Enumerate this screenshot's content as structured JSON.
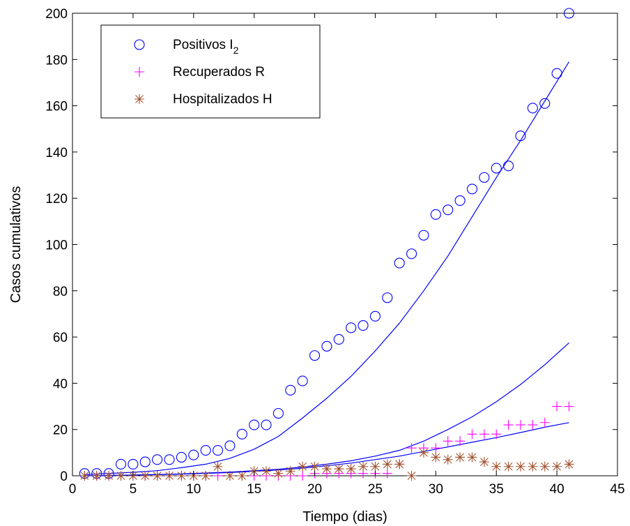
{
  "chart_data": {
    "type": "scatter",
    "title": "",
    "xlabel": "Tiempo (dias)",
    "ylabel": "Casos cumulativos",
    "xlim": [
      0,
      45
    ],
    "ylim": [
      0,
      200
    ],
    "xticks": [
      0,
      5,
      10,
      15,
      20,
      25,
      30,
      35,
      40,
      45
    ],
    "yticks": [
      0,
      20,
      40,
      60,
      80,
      100,
      120,
      140,
      160,
      180,
      200
    ],
    "grid": false,
    "legend_position": "top-left",
    "series": [
      {
        "name": "Positivos I",
        "name_subscript": "2",
        "marker": "circle",
        "color": "#0000ff",
        "x": [
          1,
          2,
          3,
          4,
          5,
          6,
          7,
          8,
          9,
          10,
          11,
          12,
          13,
          14,
          15,
          16,
          17,
          18,
          19,
          20,
          21,
          22,
          23,
          24,
          25,
          26,
          27,
          28,
          29,
          30,
          31,
          32,
          33,
          34,
          35,
          36,
          37,
          38,
          39,
          40,
          41
        ],
        "y": [
          1,
          1,
          1,
          5,
          5,
          6,
          7,
          7,
          8,
          9,
          11,
          11,
          13,
          18,
          22,
          22,
          27,
          37,
          41,
          52,
          56,
          59,
          64,
          65,
          69,
          77,
          92,
          96,
          104,
          113,
          115,
          119,
          124,
          129,
          133,
          134,
          147,
          159,
          161,
          174,
          200
        ]
      },
      {
        "name": "Recuperados R",
        "marker": "plus",
        "color": "#ff00ff",
        "x": [
          1,
          2,
          3,
          4,
          5,
          6,
          7,
          8,
          9,
          10,
          11,
          12,
          13,
          14,
          15,
          16,
          17,
          18,
          19,
          20,
          21,
          22,
          23,
          24,
          25,
          26,
          27,
          28,
          29,
          30,
          31,
          32,
          33,
          34,
          35,
          36,
          37,
          38,
          39,
          40,
          41
        ],
        "y": [
          0,
          0,
          0,
          0,
          0,
          0,
          0,
          0,
          0,
          0,
          0,
          0,
          0,
          0,
          0,
          0,
          0,
          0,
          0,
          1,
          1,
          1,
          1,
          1,
          1,
          1,
          5,
          12,
          12,
          12,
          15,
          15,
          18,
          18,
          18,
          22,
          22,
          22,
          23,
          30,
          30
        ]
      },
      {
        "name": "Hospitalizados H",
        "marker": "star",
        "color": "#a0522d",
        "x": [
          1,
          2,
          3,
          4,
          5,
          6,
          7,
          8,
          9,
          10,
          11,
          12,
          13,
          14,
          15,
          16,
          17,
          18,
          19,
          20,
          21,
          22,
          23,
          24,
          25,
          26,
          27,
          28,
          29,
          30,
          31,
          32,
          33,
          34,
          35,
          36,
          37,
          38,
          39,
          40,
          41
        ],
        "y": [
          0,
          0,
          0,
          0,
          0,
          0,
          0,
          0,
          0,
          0,
          0,
          4,
          0,
          0,
          2,
          2,
          1,
          2,
          4,
          4,
          3,
          3,
          3,
          4,
          4,
          5,
          5,
          0,
          10,
          8,
          7,
          8,
          8,
          6,
          4,
          4,
          4,
          4,
          4,
          4,
          5
        ]
      }
    ],
    "model_lines": [
      {
        "color": "#0000ff",
        "x": [
          1,
          3,
          5,
          7,
          9,
          11,
          13,
          15,
          17,
          19,
          21,
          23,
          25,
          27,
          29,
          31,
          33,
          35,
          37,
          39,
          41
        ],
        "y": [
          0.5,
          1,
          1.5,
          2.2,
          3.5,
          5,
          7.5,
          11.5,
          17,
          25,
          33.5,
          43,
          54,
          66,
          80,
          95,
          112,
          129,
          145,
          162,
          179
        ]
      },
      {
        "color": "#0000ff",
        "x": [
          1,
          5,
          9,
          13,
          17,
          19,
          21,
          23,
          25,
          27,
          29,
          31,
          33,
          35,
          37,
          39,
          41
        ],
        "y": [
          0,
          0.3,
          0.8,
          1.6,
          2.8,
          3.8,
          5,
          6.5,
          8.5,
          11,
          15,
          20,
          25.5,
          32,
          39.5,
          48,
          57.5
        ]
      },
      {
        "color": "#0000ff",
        "x": [
          1,
          5,
          9,
          13,
          17,
          19,
          21,
          23,
          25,
          27,
          29,
          31,
          33,
          35,
          37,
          39,
          41
        ],
        "y": [
          0,
          0.3,
          0.7,
          1.4,
          2.5,
          3.3,
          4.3,
          5.5,
          7,
          8.5,
          10.5,
          12.5,
          14.5,
          16.5,
          18.7,
          21,
          23
        ]
      }
    ]
  }
}
